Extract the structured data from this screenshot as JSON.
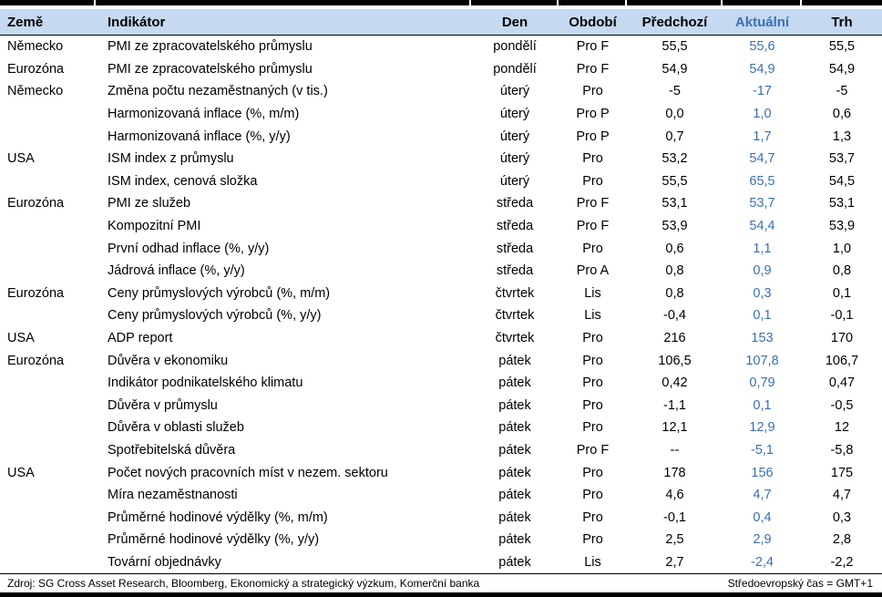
{
  "table": {
    "columns": [
      "Země",
      "Indikátor",
      "Den",
      "Období",
      "Předchozí",
      "Aktuální",
      "Trh"
    ],
    "rows": [
      {
        "country": "Německo",
        "indicator": "PMI ze zpracovatelského průmyslu",
        "day": "pondělí",
        "period": "Pro F",
        "previous": "55,5",
        "actual": "55,6",
        "market": "55,5"
      },
      {
        "country": "Eurozóna",
        "indicator": "PMI ze zpracovatelského průmyslu",
        "day": "pondělí",
        "period": "Pro F",
        "previous": "54,9",
        "actual": "54,9",
        "market": "54,9"
      },
      {
        "country": "Německo",
        "indicator": "Změna počtu nezaměstnaných (v tis.)",
        "day": "úterý",
        "period": "Pro",
        "previous": "-5",
        "actual": "-17",
        "market": "-5"
      },
      {
        "country": "",
        "indicator": "Harmonizovaná inflace (%, m/m)",
        "day": "úterý",
        "period": "Pro P",
        "previous": "0,0",
        "actual": "1,0",
        "market": "0,6"
      },
      {
        "country": "",
        "indicator": "Harmonizovaná inflace (%, y/y)",
        "day": "úterý",
        "period": "Pro P",
        "previous": "0,7",
        "actual": "1,7",
        "market": "1,3"
      },
      {
        "country": "USA",
        "indicator": "ISM index z průmyslu",
        "day": "úterý",
        "period": "Pro",
        "previous": "53,2",
        "actual": "54,7",
        "market": "53,7"
      },
      {
        "country": "",
        "indicator": "ISM index, cenová složka",
        "day": "úterý",
        "period": "Pro",
        "previous": "55,5",
        "actual": "65,5",
        "market": "54,5"
      },
      {
        "country": "Eurozóna",
        "indicator": "PMI ze služeb",
        "day": "středa",
        "period": "Pro F",
        "previous": "53,1",
        "actual": "53,7",
        "market": "53,1"
      },
      {
        "country": "",
        "indicator": "Kompozitní PMI",
        "day": "středa",
        "period": "Pro F",
        "previous": "53,9",
        "actual": "54,4",
        "market": "53,9"
      },
      {
        "country": "",
        "indicator": "První odhad inflace (%, y/y)",
        "day": "středa",
        "period": "Pro",
        "previous": "0,6",
        "actual": "1,1",
        "market": "1,0"
      },
      {
        "country": "",
        "indicator": "Jádrová inflace (%, y/y)",
        "day": "středa",
        "period": "Pro A",
        "previous": "0,8",
        "actual": "0,9",
        "market": "0,8"
      },
      {
        "country": "Eurozóna",
        "indicator": "Ceny průmyslových výrobců (%, m/m)",
        "day": "čtvrtek",
        "period": "Lis",
        "previous": "0,8",
        "actual": "0,3",
        "market": "0,1"
      },
      {
        "country": "",
        "indicator": "Ceny průmyslových výrobců (%, y/y)",
        "day": "čtvrtek",
        "period": "Lis",
        "previous": "-0,4",
        "actual": "0,1",
        "market": "-0,1"
      },
      {
        "country": "USA",
        "indicator": "ADP report",
        "day": "čtvrtek",
        "period": "Pro",
        "previous": "216",
        "actual": "153",
        "market": "170"
      },
      {
        "country": "Eurozóna",
        "indicator": "Důvěra v ekonomiku",
        "day": "pátek",
        "period": "Pro",
        "previous": "106,5",
        "actual": "107,8",
        "market": "106,7"
      },
      {
        "country": "",
        "indicator": "Indikátor podnikatelského klimatu",
        "day": "pátek",
        "period": "Pro",
        "previous": "0,42",
        "actual": "0,79",
        "market": "0,47"
      },
      {
        "country": "",
        "indicator": "Důvěra v průmyslu",
        "day": "pátek",
        "period": "Pro",
        "previous": "-1,1",
        "actual": "0,1",
        "market": "-0,5"
      },
      {
        "country": "",
        "indicator": "Důvěra v oblasti služeb",
        "day": "pátek",
        "period": "Pro",
        "previous": "12,1",
        "actual": "12,9",
        "market": "12"
      },
      {
        "country": "",
        "indicator": "Spotřebitelská důvěra",
        "day": "pátek",
        "period": "Pro F",
        "previous": "--",
        "actual": "-5,1",
        "market": "-5,8"
      },
      {
        "country": "USA",
        "indicator": "Počet nových pracovních míst v nezem. sektoru",
        "day": "pátek",
        "period": "Pro",
        "previous": "178",
        "actual": "156",
        "market": "175"
      },
      {
        "country": "",
        "indicator": "Míra nezaměstnanosti",
        "day": "pátek",
        "period": "Pro",
        "previous": "4,6",
        "actual": "4,7",
        "market": "4,7"
      },
      {
        "country": "",
        "indicator": "Průměrné hodinové výdělky (%, m/m)",
        "day": "pátek",
        "period": "Pro",
        "previous": "-0,1",
        "actual": "0,4",
        "market": "0,3"
      },
      {
        "country": "",
        "indicator": "Průměrné hodinové výdělky (%, y/y)",
        "day": "pátek",
        "period": "Pro",
        "previous": "2,5",
        "actual": "2,9",
        "market": "2,8"
      },
      {
        "country": "",
        "indicator": "Tovární objednávky",
        "day": "pátek",
        "period": "Lis",
        "previous": "2,7",
        "actual": "-2,4",
        "market": "-2,2"
      }
    ]
  },
  "footer": {
    "source": "Zdroj: SG Cross Asset Research, Bloomberg, Ekonomický a strategický výzkum, Komerční banka",
    "timezone": "Středoevropský čas = GMT+1"
  },
  "colors": {
    "accent_blue": "#3A6FB5",
    "header_bg": "#C5D9F1"
  }
}
